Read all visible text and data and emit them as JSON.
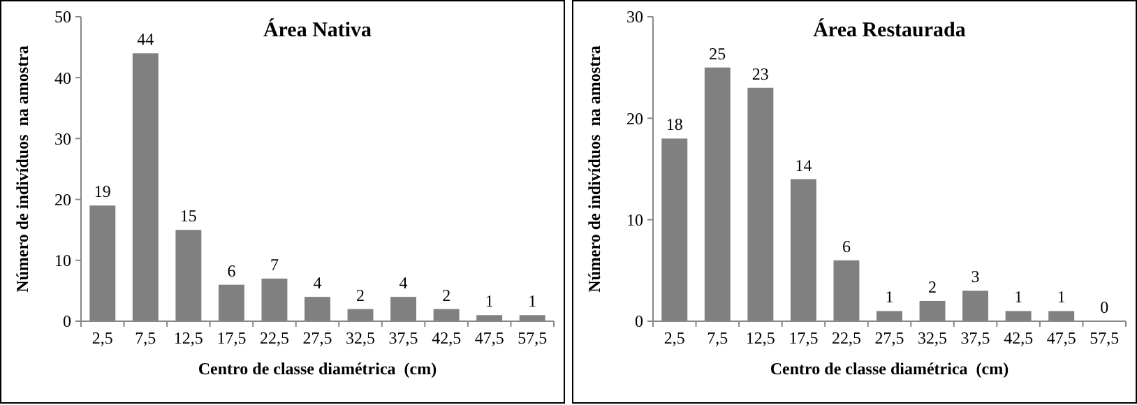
{
  "chart_data": [
    {
      "type": "bar",
      "title": "Área Nativa",
      "xlabel": "Centro de classe diamétrica  (cm)",
      "ylabel": "Número de indivíduos  na amostra",
      "categories": [
        "2,5",
        "7,5",
        "12,5",
        "17,5",
        "22,5",
        "27,5",
        "32,5",
        "37,5",
        "42,5",
        "47,5",
        "57,5"
      ],
      "values": [
        19,
        44,
        15,
        6,
        7,
        4,
        2,
        4,
        2,
        1,
        1
      ],
      "color": "#808080",
      "ylim": [
        0,
        50
      ],
      "yticks": [
        0,
        10,
        20,
        30,
        40,
        50
      ],
      "grid": false,
      "data_labels": true
    },
    {
      "type": "bar",
      "title": "Área Restaurada",
      "xlabel": "Centro de classe diamétrica  (cm)",
      "ylabel": "Número de indivíduos  na amostra",
      "categories": [
        "2,5",
        "7,5",
        "12,5",
        "17,5",
        "22,5",
        "27,5",
        "32,5",
        "37,5",
        "42,5",
        "47,5",
        "57,5"
      ],
      "values": [
        18,
        25,
        23,
        14,
        6,
        1,
        2,
        3,
        1,
        1,
        0
      ],
      "color": "#808080",
      "ylim": [
        0,
        30
      ],
      "yticks": [
        0,
        10,
        20,
        30
      ],
      "grid": false,
      "data_labels": true
    }
  ]
}
